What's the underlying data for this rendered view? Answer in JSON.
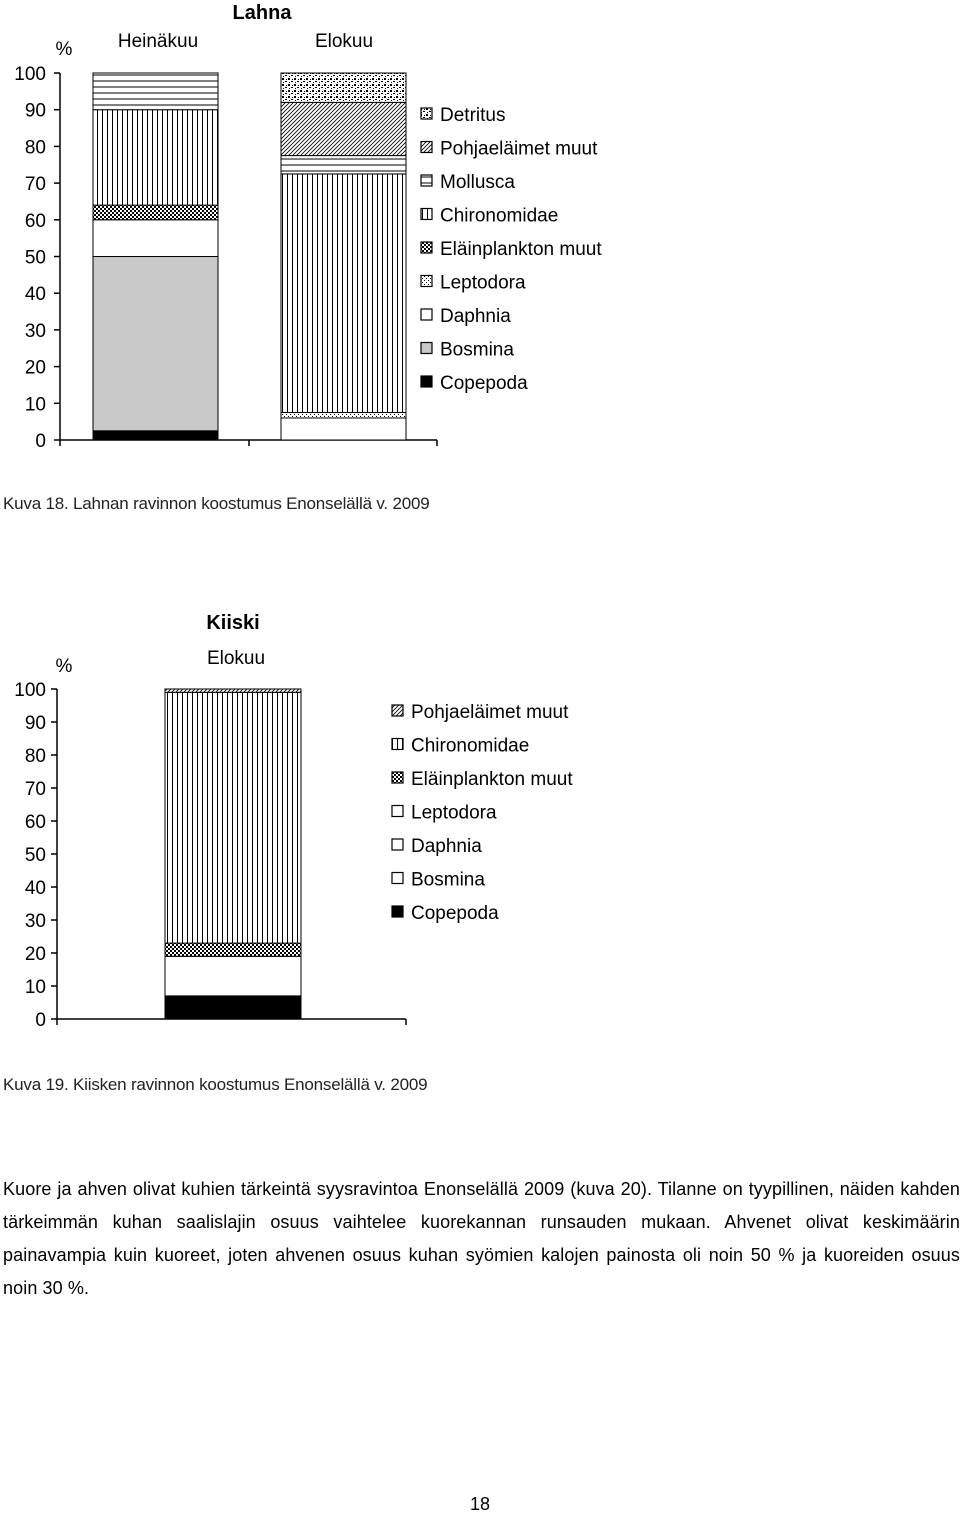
{
  "chart_data": [
    {
      "type": "bar",
      "stacked": true,
      "title": "Lahna",
      "ylabel": "%",
      "ylim": [
        0,
        100
      ],
      "yticks": [
        "100",
        "90",
        "80",
        "70",
        "60",
        "50",
        "40",
        "30",
        "20",
        "10",
        "0"
      ],
      "categories": [
        "Heinäkuu",
        "Elokuu"
      ],
      "legend_position": "right",
      "legend": [
        "Detritus",
        "Pohjaeläimet muut",
        "Mollusca",
        "Chironomidae",
        "Eläinplankton muut",
        "Leptodora",
        "Daphnia",
        "Bosmina",
        "Copepoda"
      ],
      "series": [
        {
          "name": "Copepoda",
          "pattern": "solid-black",
          "values": [
            2.5,
            0
          ]
        },
        {
          "name": "Bosmina",
          "pattern": "gray",
          "values": [
            47.5,
            0
          ]
        },
        {
          "name": "Daphnia",
          "pattern": "white",
          "values": [
            10,
            6
          ]
        },
        {
          "name": "Leptodora",
          "pattern": "dots",
          "values": [
            0,
            1.5
          ]
        },
        {
          "name": "Eläinplankton muut",
          "pattern": "checker",
          "values": [
            4,
            0
          ]
        },
        {
          "name": "Chironomidae",
          "pattern": "vertical",
          "values": [
            26,
            65
          ]
        },
        {
          "name": "Mollusca",
          "pattern": "horizontal",
          "values": [
            10,
            5
          ]
        },
        {
          "name": "Pohjaeläimet muut",
          "pattern": "diagonal",
          "values": [
            0,
            14.5
          ]
        },
        {
          "name": "Detritus",
          "pattern": "speckle",
          "values": [
            0,
            8
          ]
        }
      ]
    },
    {
      "type": "bar",
      "stacked": true,
      "title": "Kiiski",
      "ylabel": "%",
      "ylim": [
        0,
        100
      ],
      "yticks": [
        "100",
        "90",
        "80",
        "70",
        "60",
        "50",
        "40",
        "30",
        "20",
        "10",
        "0"
      ],
      "categories": [
        "Elokuu"
      ],
      "legend_position": "right",
      "legend": [
        "Pohjaeläimet muut",
        "Chironomidae",
        "Eläinplankton muut",
        "Leptodora",
        "Daphnia",
        "Bosmina",
        "Copepoda"
      ],
      "series": [
        {
          "name": "Copepoda",
          "pattern": "solid-black",
          "values": [
            7
          ]
        },
        {
          "name": "Daphnia",
          "pattern": "white",
          "values": [
            12
          ]
        },
        {
          "name": "Eläinplankton muut",
          "pattern": "checker",
          "values": [
            4
          ]
        },
        {
          "name": "Chironomidae",
          "pattern": "vertical",
          "values": [
            76
          ]
        },
        {
          "name": "Pohjaeläimet muut",
          "pattern": "diagonal",
          "values": [
            1
          ]
        }
      ]
    }
  ],
  "captions": {
    "kuva18": "Kuva 18. Lahnan ravinnon koostumus Enonselällä v. 2009",
    "kuva19": "Kuva 19. Kiisken ravinnon koostumus Enonselällä v. 2009"
  },
  "paragraph": "Kuore ja ahven olivat kuhien tärkeintä syysravintoa Enonselällä 2009 (kuva 20). Tilanne on tyypillinen, näiden kahden tärkeimmän kuhan saalislajin osuus vaihtelee kuorekannan runsauden mukaan. Ahvenet olivat keskimäärin painavampia kuin kuoreet, joten ahvenen osuus kuhan syömien kalojen painosta oli noin 50 % ja kuoreiden osuus noin 30 %.",
  "page_number": "18"
}
